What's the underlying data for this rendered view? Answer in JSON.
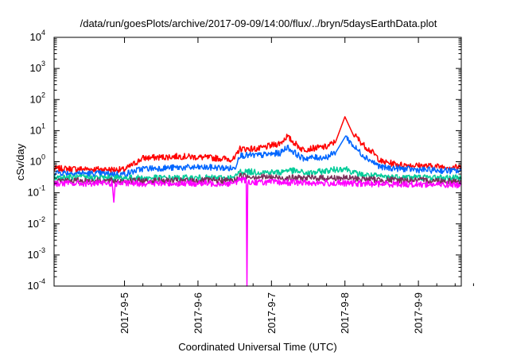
{
  "chart_data": {
    "type": "line",
    "title": "/data/run/goesPlots/archive/2017-09-09/14:00/flux/../bryn/5daysEarthData.plot",
    "xlabel": "Coordinated Universal Time (UTC)",
    "ylabel": "cSv/day",
    "yscale": "log",
    "ylim": [
      0.0001,
      10000
    ],
    "y_ticks": [
      {
        "value": 0.0001,
        "base": "10",
        "exp": "-4"
      },
      {
        "value": 0.001,
        "base": "10",
        "exp": "-3"
      },
      {
        "value": 0.01,
        "base": "10",
        "exp": "-2"
      },
      {
        "value": 0.1,
        "base": "10",
        "exp": "-1"
      },
      {
        "value": 1,
        "base": "10",
        "exp": "0"
      },
      {
        "value": 10,
        "base": "10",
        "exp": "1"
      },
      {
        "value": 100,
        "base": "10",
        "exp": "2"
      },
      {
        "value": 1000,
        "base": "10",
        "exp": "3"
      },
      {
        "value": 10000,
        "base": "10",
        "exp": "4"
      }
    ],
    "xlim": [
      "2017-09-04 01:00",
      "2017-09-09 14:00"
    ],
    "x_ticks": [
      "2017-9-5",
      "2017-9-6",
      "2017-9-7",
      "2017-9-8",
      "2017-9-9"
    ],
    "grid": false,
    "legend": "none",
    "series": [
      {
        "color": "#ff0000",
        "x": [
          "2017-09-04 01:00",
          "2017-09-04 12:00",
          "2017-09-05 00:00",
          "2017-09-05 06:00",
          "2017-09-05 18:00",
          "2017-09-06 06:00",
          "2017-09-06 12:00",
          "2017-09-06 13:30",
          "2017-09-06 20:00",
          "2017-09-07 03:00",
          "2017-09-07 05:00",
          "2017-09-07 10:00",
          "2017-09-07 18:00",
          "2017-09-07 21:00",
          "2017-09-08 00:00",
          "2017-09-08 03:00",
          "2017-09-08 06:00",
          "2017-09-08 09:00",
          "2017-09-08 12:00",
          "2017-09-08 18:00",
          "2017-09-09 00:00",
          "2017-09-09 14:00"
        ],
        "values": [
          0.6,
          0.58,
          0.55,
          1.3,
          1.5,
          1.3,
          1.2,
          2.6,
          2.6,
          4.0,
          6.5,
          2.5,
          3.0,
          4.5,
          28,
          7.5,
          3.5,
          2.0,
          1.0,
          0.8,
          0.75,
          0.65
        ]
      },
      {
        "color": "#0066ff",
        "x": [
          "2017-09-04 01:00",
          "2017-09-04 12:00",
          "2017-09-05 00:00",
          "2017-09-05 06:00",
          "2017-09-05 18:00",
          "2017-09-06 06:00",
          "2017-09-06 12:00",
          "2017-09-06 13:30",
          "2017-09-06 20:00",
          "2017-09-07 03:00",
          "2017-09-07 05:00",
          "2017-09-07 10:00",
          "2017-09-07 18:00",
          "2017-09-07 21:00",
          "2017-09-08 00:00",
          "2017-09-08 03:00",
          "2017-09-08 06:00",
          "2017-09-08 09:00",
          "2017-09-08 12:00",
          "2017-09-08 18:00",
          "2017-09-09 00:00",
          "2017-09-09 14:00"
        ],
        "values": [
          0.45,
          0.42,
          0.4,
          0.6,
          0.65,
          0.65,
          0.6,
          1.6,
          1.6,
          1.9,
          3.0,
          1.3,
          1.4,
          2.0,
          7.0,
          3.0,
          1.6,
          1.0,
          0.65,
          0.6,
          0.55,
          0.5
        ]
      },
      {
        "color": "#00cc99",
        "x": [
          "2017-09-04 01:00",
          "2017-09-05 00:00",
          "2017-09-06 12:00",
          "2017-09-06 13:30",
          "2017-09-07 03:00",
          "2017-09-07 05:00",
          "2017-09-07 12:00",
          "2017-09-08 00:00",
          "2017-09-08 04:00",
          "2017-09-08 12:00",
          "2017-09-09 14:00"
        ],
        "values": [
          0.32,
          0.3,
          0.3,
          0.48,
          0.45,
          0.55,
          0.42,
          0.62,
          0.4,
          0.33,
          0.3
        ]
      },
      {
        "color": "#7a2f5a",
        "x": [
          "2017-09-04 01:00",
          "2017-09-05 00:00",
          "2017-09-06 12:00",
          "2017-09-06 13:30",
          "2017-09-07 05:00",
          "2017-09-08 00:00",
          "2017-09-08 12:00",
          "2017-09-09 14:00"
        ],
        "values": [
          0.25,
          0.24,
          0.25,
          0.35,
          0.3,
          0.3,
          0.26,
          0.24
        ]
      },
      {
        "color": "#ff00ff",
        "x": [
          "2017-09-04 01:00",
          "2017-09-04 20:00",
          "2017-09-04 20:30",
          "2017-09-04 21:00",
          "2017-09-06 12:00",
          "2017-09-06 13:30",
          "2017-09-06 15:45",
          "2017-09-06 16:00",
          "2017-09-06 16:15",
          "2017-09-07 00:00",
          "2017-09-08 00:00",
          "2017-09-09 14:00"
        ],
        "values": [
          0.2,
          0.2,
          0.05,
          0.2,
          0.2,
          0.28,
          0.25,
          0.0001,
          0.22,
          0.22,
          0.2,
          0.18
        ]
      }
    ]
  }
}
